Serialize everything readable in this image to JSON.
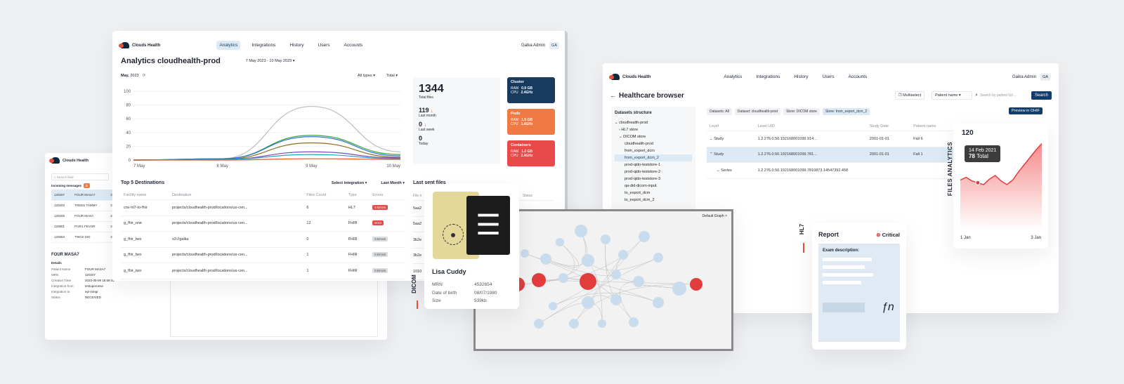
{
  "brand": "Clouds Health",
  "nav": [
    "Analytics",
    "Integrations",
    "History",
    "Users",
    "Accounts"
  ],
  "user": {
    "name": "Galka Admin",
    "initials": "GA"
  },
  "analytics": {
    "title": "Analytics cloudhealth-prod",
    "date_range": "7 May 2023 - 10 May 2023",
    "period_label": "May,",
    "period_year": "2023",
    "filter_types": "All types",
    "filter_total": "Total",
    "stats": {
      "total": "1344",
      "total_label": "Total files",
      "month": "119",
      "month_label": "Last month",
      "week": "0",
      "week_label": "Last week",
      "today": "0",
      "today_label": "Today"
    },
    "tiles": [
      {
        "title": "Cluster",
        "ram_label": "RAM",
        "ram": "0.9 GB",
        "cpu_label": "CPU",
        "cpu": "2.4GHz",
        "color": "#173a5e"
      },
      {
        "title": "Pods",
        "ram_label": "RAM",
        "ram": "1.5 GB",
        "cpu_label": "CPU",
        "cpu": "1.4GHz",
        "color": "#f07a44"
      },
      {
        "title": "Containers",
        "ram_label": "RAM",
        "ram": "1.2 GB",
        "cpu_label": "CPU",
        "cpu": "2.4GHz",
        "color": "#e84a4a"
      }
    ],
    "dest_title": "Top 5 Destinations",
    "select_integration": "Select integration",
    "last_month": "Last Month",
    "last_sent_title": "Last sent files",
    "table_headers": [
      "Facility name",
      "Destination",
      "Files Count",
      "Type",
      "Errors"
    ],
    "rows": [
      {
        "facility": "cnv-hl7-to-fhir",
        "destination": "projects/cloudhealth-prod/locations/us-cen...",
        "count": "6",
        "type": "HL7",
        "errors": "5 Errors",
        "err": true
      },
      {
        "facility": "g_fhir_one",
        "destination": "projects/cloudhealth-prod/locations/us-cen...",
        "count": "12",
        "type": "FHIR",
        "errors": "Error",
        "err": true
      },
      {
        "facility": "g_fhir_two",
        "destination": "s3://galka",
        "count": "0",
        "type": "FHIR",
        "errors": "0 Errors",
        "err": false
      },
      {
        "facility": "g_fhir_two",
        "destination": "projects/cloudhealth-prod/locations/us-cen...",
        "count": "1",
        "type": "FHIR",
        "errors": "0 Errors",
        "err": false
      },
      {
        "facility": "g_fhir_two",
        "destination": "projects/cloudhealth-prod/locations/us-cen...",
        "count": "1",
        "type": "FHIR",
        "errors": "0 Errors",
        "err": false
      }
    ],
    "side_headers": [
      "File n",
      "Status"
    ],
    "side_values": [
      "5aa2",
      "5aa2",
      "3b2e",
      "3b2e",
      "1010"
    ]
  },
  "chart_data": {
    "type": "line",
    "x": [
      "7 May",
      "8 May",
      "9 May",
      "10 May"
    ],
    "ylim": [
      0,
      100
    ],
    "yticks": [
      "100",
      "80",
      "60",
      "40",
      "20",
      "0"
    ],
    "series": [
      {
        "color": "#bdbdbd",
        "values": [
          0,
          2,
          78,
          12
        ]
      },
      {
        "color": "#3aa63a",
        "values": [
          0,
          2,
          36,
          8
        ]
      },
      {
        "color": "#2b6bd6",
        "values": [
          0,
          2,
          34,
          6
        ]
      },
      {
        "color": "#8a6d1e",
        "values": [
          0,
          1,
          25,
          4
        ]
      },
      {
        "color": "#7a4bb8",
        "values": [
          0,
          1,
          12,
          3
        ]
      },
      {
        "color": "#22a4c9",
        "values": [
          0,
          1,
          8,
          2
        ]
      },
      {
        "color": "#e05a2a",
        "values": [
          0,
          0,
          2,
          1
        ]
      }
    ]
  },
  "messages": {
    "search_placeholder": "Search field",
    "incoming": "Incoming messages",
    "incoming_count": "3",
    "rows": [
      {
        "id": "120207",
        "name": "FOUR MASA7",
        "date": "202"
      },
      {
        "id": "120203",
        "name": "TREES TAMMY",
        "date": "202"
      },
      {
        "id": "120205",
        "name": "FOUR MASA",
        "date": "202"
      },
      {
        "id": "120801",
        "name": "FIVE1 FEVOR",
        "date": "202"
      },
      {
        "id": "120553",
        "name": "TWO2 DIO",
        "date": "202"
      }
    ],
    "detail_title": "FOUR MASA7",
    "details_label": "Details",
    "details": [
      {
        "k": "Patient Name",
        "v": "FOUR MASA7"
      },
      {
        "k": "MRN",
        "v": "120207"
      },
      {
        "k": "Creation Time",
        "v": "2023-05-09 16:59:41"
      },
      {
        "k": "Integration from",
        "v": "testuperonse"
      },
      {
        "k": "Integration to",
        "v": "epi-integr"
      },
      {
        "k": "Status",
        "v": "RECEIVED"
      }
    ]
  },
  "browser": {
    "title": "Healthcare browser",
    "multiselect": "Multiselect",
    "patient_select": "Patient name",
    "search_placeholder": "Search by patient full ...",
    "search_btn": "Search",
    "datasets_title": "Datasets structure",
    "tree": [
      "cloudhealth-prod",
      "HL7 store",
      "DICOM store",
      "cloudhealth-prod",
      "from_export_dcm",
      "from_export_dcm_2",
      "prod-qido-teststore-1",
      "prod-qido-teststore-2",
      "prod-qido-teststore-3",
      "qa-did-dicom-input",
      "to_export_dcm",
      "to_export_dcm_2"
    ],
    "crumbs": [
      "Datasets: All",
      "Dataset: cloudhealth-prod",
      "Store: DICOM store",
      "Store: from_export_dcm_2"
    ],
    "preview": "Preview in OHIF",
    "headers": [
      "Level",
      "Level UID",
      "Study Date",
      "Patient name"
    ],
    "rows": [
      {
        "level": "Study",
        "uid": "1.2.276.0.50.192168001099.914...",
        "date": "2001-01-01",
        "patient": "Fall 6"
      },
      {
        "level": "Study",
        "uid": "1.2.276.0.50.192168001099.781...",
        "date": "2001-01-01",
        "patient": "Fall 1"
      },
      {
        "level": "Series",
        "uid": "1.2.276.0.50.192168001099.7810873.14547392.458",
        "date": "",
        "patient": ""
      }
    ]
  },
  "analytics_card": {
    "label": "FILES ANALYTICS",
    "max": "120",
    "tip_date": "14 Feb 2021",
    "tip_value": "78",
    "tip_suffix": "Total",
    "x_start": "1 Jan",
    "x_end": "3 Jan",
    "level_values": [
      0.55,
      0.58,
      0.54,
      0.52,
      0.5,
      0.56,
      0.6,
      0.54,
      0.5,
      0.55,
      0.64,
      0.72,
      0.8,
      0.88,
      0.95
    ]
  },
  "patient": {
    "name": "Lisa Cuddy",
    "mrn_label": "MRN",
    "mrn": "4532654",
    "dob_label": "Date of birth",
    "dob": "08/07/1980",
    "size_label": "Size",
    "size": "539kb"
  },
  "vertical_labels": {
    "dicom": "DICOM",
    "hl7": "HL7"
  },
  "report": {
    "title": "Report",
    "status": "Critical",
    "exam": "Exam description:"
  },
  "graph": {
    "title": "Default Graph",
    "close": "×"
  }
}
